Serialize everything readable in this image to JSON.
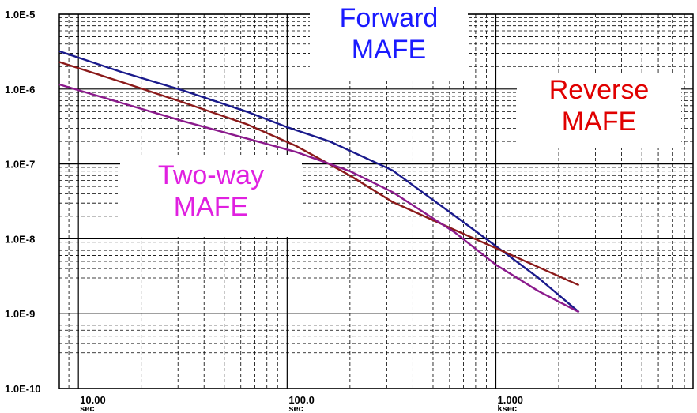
{
  "chart_data": {
    "type": "line",
    "x_scale": "log",
    "y_scale": "log",
    "xlim": [
      8.1,
      8800
    ],
    "ylim": [
      1e-10,
      1e-05
    ],
    "grid": true,
    "y_tick_labels": [
      {
        "value": 1e-05,
        "label": "1.0E-5"
      },
      {
        "value": 1e-06,
        "label": "1.0E-6"
      },
      {
        "value": 1e-07,
        "label": "1.0E-7"
      },
      {
        "value": 1e-08,
        "label": "1.0E-8"
      },
      {
        "value": 1e-09,
        "label": "1.0E-9"
      },
      {
        "value": 1e-10,
        "label": "1.0E-10"
      }
    ],
    "x_tick_labels": [
      {
        "value": 10,
        "label": "10.00",
        "unit": "sec"
      },
      {
        "value": 100,
        "label": "100.0",
        "unit": "sec"
      },
      {
        "value": 1000,
        "label": "1.000",
        "unit": "ksec"
      }
    ],
    "series": [
      {
        "name": "Forward MAFE",
        "color": "#1a1a8c",
        "points": [
          [
            8.1,
            3.2e-06
          ],
          [
            16,
            1.7e-06
          ],
          [
            32,
            9.5e-07
          ],
          [
            64,
            5e-07
          ],
          [
            100,
            3.1e-07
          ],
          [
            160,
            2e-07
          ],
          [
            320,
            8.2e-08
          ],
          [
            640,
            2e-08
          ],
          [
            1000,
            8e-09
          ],
          [
            1600,
            3e-09
          ],
          [
            2500,
            1.05e-09
          ]
        ]
      },
      {
        "name": "Reverse MAFE",
        "color": "#8b1a1a",
        "points": [
          [
            8.1,
            2.3e-06
          ],
          [
            16,
            1.25e-06
          ],
          [
            32,
            6.6e-07
          ],
          [
            64,
            3.4e-07
          ],
          [
            110,
            1.75e-07
          ],
          [
            200,
            7e-08
          ],
          [
            320,
            3.1e-08
          ],
          [
            640,
            1.3e-08
          ],
          [
            1000,
            7.5e-09
          ],
          [
            2500,
            2.4e-09
          ]
        ]
      },
      {
        "name": "Two-way MAFE",
        "color": "#8b1a8c",
        "points": [
          [
            8.1,
            1.15e-06
          ],
          [
            32,
            3.7e-07
          ],
          [
            110,
            1.45e-07
          ],
          [
            200,
            8e-08
          ],
          [
            320,
            4.2e-08
          ],
          [
            640,
            1.2e-08
          ],
          [
            1000,
            4.5e-09
          ],
          [
            1600,
            2e-09
          ],
          [
            2500,
            1.05e-09
          ]
        ]
      }
    ],
    "annotations": [
      {
        "key": "forward",
        "lines": [
          "Forward",
          "MAFE"
        ],
        "color": "#1a1aff"
      },
      {
        "key": "reverse",
        "lines": [
          "Reverse",
          "MAFE"
        ],
        "color": "#e00000"
      },
      {
        "key": "twoway",
        "lines": [
          "Two-way",
          "MAFE"
        ],
        "color": "#e020e0"
      }
    ]
  }
}
